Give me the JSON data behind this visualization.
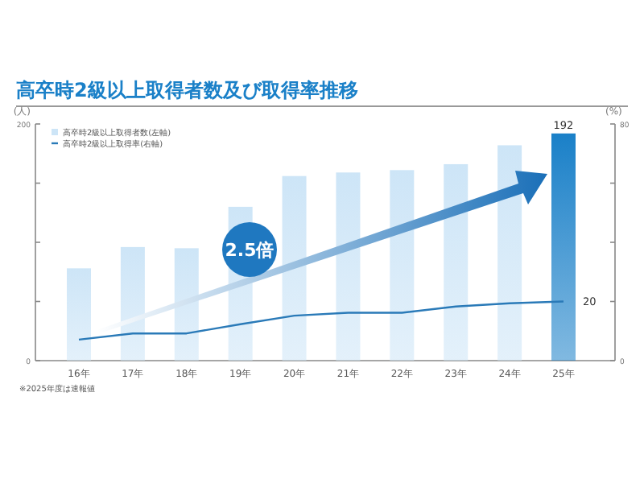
{
  "chart_data": {
    "type": "bar",
    "title": "高卒時2級以上取得者数及び取得率推移",
    "categories": [
      "16年",
      "17年",
      "18年",
      "19年",
      "20年",
      "21年",
      "22年",
      "23年",
      "24年",
      "25年"
    ],
    "series": [
      {
        "name": "高卒時2級以上取得者数(左軸)",
        "color": "#cde5f7",
        "colors": [
          "#cde5f7",
          "#cde5f7",
          "#cde5f7",
          "#cde5f7",
          "#cde5f7",
          "#cde5f7",
          "#cde5f7",
          "#cde5f7",
          "#cde5f7",
          "#1a80c8"
        ],
        "values": [
          78,
          96,
          95,
          130,
          156,
          159,
          161,
          166,
          182,
          192
        ],
        "value_labels": [
          null,
          null,
          null,
          null,
          null,
          null,
          null,
          null,
          null,
          "192"
        ]
      },
      {
        "name": "高卒時2級以上取得率(右軸)",
        "type": "line",
        "axis": "y2",
        "color": "#2a7ab8",
        "values": [
          7.1,
          9.2,
          9.2,
          12.3,
          15.2,
          16.2,
          16.2,
          18.3,
          19.4,
          20
        ],
        "value_labels": [
          null,
          null,
          null,
          null,
          null,
          null,
          null,
          null,
          null,
          "20"
        ]
      }
    ],
    "ylabel": "(人)",
    "y2label": "(%)",
    "ylim": [
      0,
      200
    ],
    "yticks": [
      0,
      {
        "value": 50,
        "label": null
      },
      {
        "value": 100,
        "label": null
      },
      {
        "value": 150,
        "label": null
      },
      200
    ],
    "y2lim": [
      0,
      80
    ],
    "y2ticks": [
      0,
      {
        "value": 20,
        "label": null
      },
      {
        "value": 40,
        "label": null
      },
      {
        "value": 60,
        "label": null
      },
      80
    ],
    "legend": "top left",
    "annotations": [
      "2.5倍",
      "※2025年度は速報値"
    ]
  }
}
